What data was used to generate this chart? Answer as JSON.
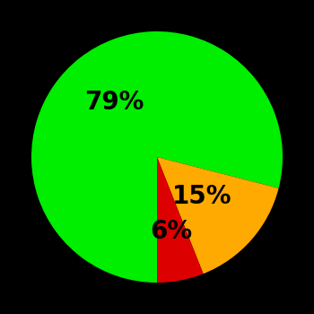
{
  "slices": [
    79,
    15,
    6
  ],
  "colors": [
    "#00ee00",
    "#ffaa00",
    "#dd0000"
  ],
  "labels": [
    "79%",
    "15%",
    "6%"
  ],
  "background_color": "#000000",
  "startangle": -90,
  "counterclock": false,
  "figsize": [
    3.5,
    3.5
  ],
  "dpi": 100,
  "label_fontsize": 20,
  "label_fontweight": "bold",
  "label_radii": [
    0.55,
    0.48,
    0.6
  ]
}
